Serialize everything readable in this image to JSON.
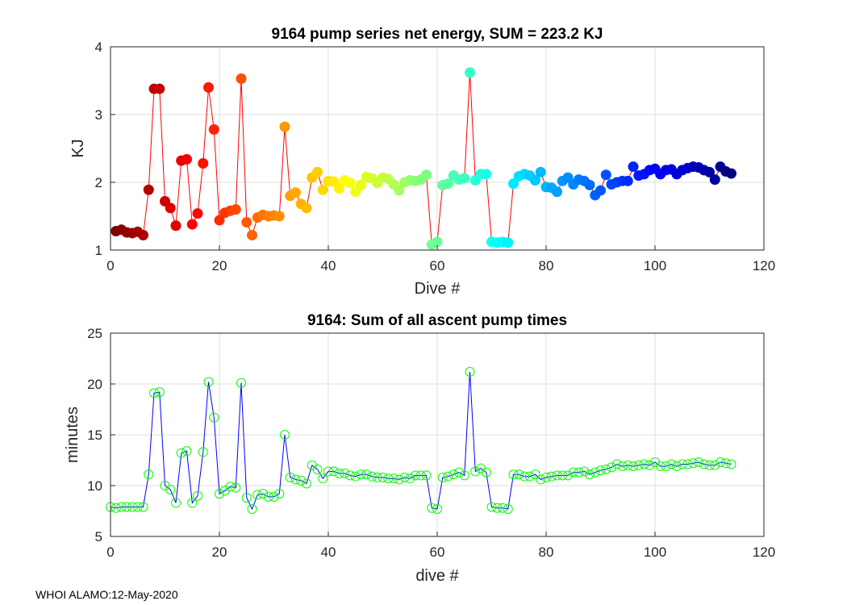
{
  "footer": "WHOI ALAMO:12-May-2020",
  "chart_data": [
    {
      "type": "line",
      "title": "9164 pump series net energy, SUM = 223.2 KJ",
      "xlabel": "Dive #",
      "ylabel": "KJ",
      "xlim": [
        0,
        120
      ],
      "ylim": [
        1,
        4
      ],
      "xticks": [
        0,
        20,
        40,
        60,
        80,
        100,
        120
      ],
      "yticks": [
        1,
        2,
        3,
        4
      ],
      "grid": true,
      "line_color": "#ff0000",
      "marker": "filled-circle",
      "marker_colormap": "jet-reversed",
      "x": [
        1,
        2,
        3,
        4,
        5,
        6,
        7,
        8,
        9,
        10,
        11,
        12,
        13,
        14,
        15,
        16,
        17,
        18,
        19,
        20,
        21,
        22,
        23,
        24,
        25,
        26,
        27,
        28,
        29,
        30,
        31,
        32,
        33,
        34,
        35,
        36,
        37,
        38,
        39,
        40,
        41,
        42,
        43,
        44,
        45,
        46,
        47,
        48,
        49,
        50,
        51,
        52,
        53,
        54,
        55,
        56,
        57,
        58,
        59,
        60,
        61,
        62,
        63,
        64,
        65,
        66,
        67,
        68,
        69,
        70,
        71,
        72,
        73,
        74,
        75,
        76,
        77,
        78,
        79,
        80,
        81,
        82,
        83,
        84,
        85,
        86,
        87,
        88,
        89,
        90,
        91,
        92,
        93,
        94,
        95,
        96,
        97,
        98,
        99,
        100,
        101,
        102,
        103,
        104,
        105,
        106,
        107,
        108,
        109,
        110,
        111,
        112,
        113,
        114
      ],
      "values": [
        1.28,
        1.3,
        1.26,
        1.25,
        1.27,
        1.22,
        1.89,
        3.38,
        3.38,
        1.72,
        1.62,
        1.36,
        2.32,
        2.34,
        1.38,
        1.54,
        2.28,
        3.4,
        2.78,
        1.44,
        1.55,
        1.58,
        1.6,
        3.53,
        1.41,
        1.22,
        1.48,
        1.52,
        1.5,
        1.51,
        1.5,
        2.82,
        1.8,
        1.85,
        1.68,
        1.62,
        2.07,
        2.15,
        1.89,
        2.02,
        2.01,
        1.91,
        2.03,
        1.99,
        1.86,
        1.96,
        2.08,
        2.06,
        1.99,
        2.07,
        2.05,
        1.97,
        1.88,
        2.0,
        2.03,
        2.02,
        2.04,
        2.11,
        1.08,
        1.12,
        1.96,
        1.98,
        2.1,
        2.04,
        2.06,
        3.62,
        2.03,
        2.12,
        2.12,
        1.12,
        1.11,
        1.12,
        1.11,
        1.98,
        2.09,
        2.12,
        2.1,
        2.03,
        2.15,
        1.93,
        1.92,
        1.86,
        2.02,
        2.07,
        1.97,
        2.04,
        2.02,
        1.96,
        1.81,
        1.88,
        2.11,
        1.97,
        2.0,
        2.02,
        2.02,
        2.23,
        2.1,
        2.12,
        2.18,
        2.2,
        2.12,
        2.18,
        2.19,
        2.12,
        2.18,
        2.21,
        2.23,
        2.22,
        2.18,
        2.15,
        2.04,
        2.23,
        2.16,
        2.13
      ]
    },
    {
      "type": "line",
      "title": "9164: Sum of all ascent pump times",
      "xlabel": "dive #",
      "ylabel": "minutes",
      "xlim": [
        0,
        120
      ],
      "ylim": [
        5,
        25
      ],
      "xticks": [
        0,
        20,
        40,
        60,
        80,
        100,
        120
      ],
      "yticks": [
        5,
        10,
        15,
        20,
        25
      ],
      "grid": true,
      "line_color": "#0000ff",
      "marker": "open-circle",
      "marker_color": "#00ff00",
      "x": [
        0,
        1,
        2,
        3,
        4,
        5,
        6,
        7,
        8,
        9,
        10,
        11,
        12,
        13,
        14,
        15,
        16,
        17,
        18,
        19,
        20,
        21,
        22,
        23,
        24,
        25,
        26,
        27,
        28,
        29,
        30,
        31,
        32,
        33,
        34,
        35,
        36,
        37,
        38,
        39,
        40,
        41,
        42,
        43,
        44,
        45,
        46,
        47,
        48,
        49,
        50,
        51,
        52,
        53,
        54,
        55,
        56,
        57,
        58,
        59,
        60,
        61,
        62,
        63,
        64,
        65,
        66,
        67,
        68,
        69,
        70,
        71,
        72,
        73,
        74,
        75,
        76,
        77,
        78,
        79,
        80,
        81,
        82,
        83,
        84,
        85,
        86,
        87,
        88,
        89,
        90,
        91,
        92,
        93,
        94,
        95,
        96,
        97,
        98,
        99,
        100,
        101,
        102,
        103,
        104,
        105,
        106,
        107,
        108,
        109,
        110,
        111,
        112,
        113,
        114
      ],
      "values": [
        7.9,
        7.8,
        7.9,
        7.9,
        7.9,
        7.9,
        7.9,
        11.1,
        19.1,
        19.2,
        10.0,
        9.6,
        8.3,
        13.2,
        13.4,
        8.3,
        9.0,
        13.3,
        20.2,
        16.7,
        9.2,
        9.5,
        9.9,
        9.8,
        20.1,
        8.8,
        7.7,
        9.1,
        9.2,
        8.9,
        8.9,
        9.2,
        15.0,
        10.8,
        10.6,
        10.5,
        10.2,
        12.0,
        11.6,
        10.7,
        11.4,
        11.4,
        11.2,
        11.2,
        11.0,
        10.9,
        11.1,
        11.1,
        10.9,
        10.8,
        10.8,
        10.7,
        10.7,
        10.6,
        10.8,
        10.7,
        11.0,
        11.0,
        11.0,
        7.8,
        7.7,
        10.8,
        10.9,
        11.1,
        11.3,
        11.0,
        21.2,
        11.4,
        11.7,
        11.3,
        7.9,
        7.8,
        7.8,
        7.7,
        11.1,
        11.1,
        10.9,
        10.9,
        11.1,
        10.6,
        10.8,
        10.9,
        11.0,
        11.0,
        11.0,
        11.3,
        11.3,
        11.4,
        11.1,
        11.3,
        11.5,
        11.6,
        11.8,
        12.1,
        11.9,
        12.0,
        11.9,
        12.0,
        12.1,
        12.0,
        12.3,
        11.9,
        11.9,
        12.1,
        11.9,
        12.1,
        12.1,
        12.2,
        12.3,
        12.1,
        12.0,
        12.0,
        12.3,
        12.2,
        12.1
      ]
    }
  ]
}
